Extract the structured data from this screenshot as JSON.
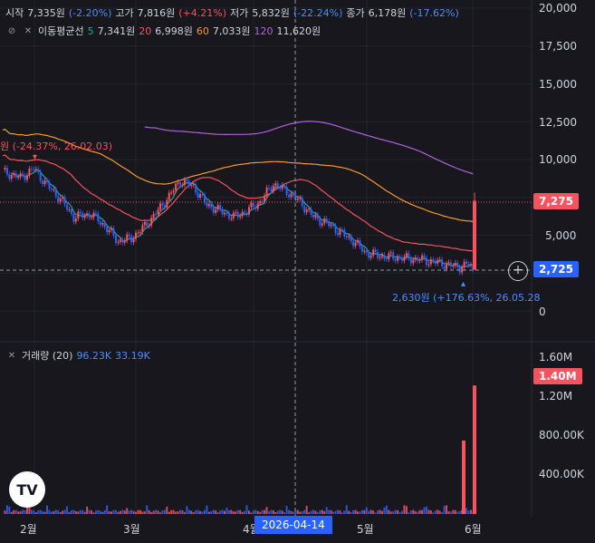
{
  "ohlc": {
    "open_label": "시작",
    "open_value": "7,335원",
    "open_change": "(-2.20%)",
    "high_label": "고가",
    "high_value": "7,816원",
    "high_change": "(+4.21%)",
    "low_label": "저가",
    "low_value": "5,832원",
    "low_change": "(-22.24%)",
    "close_label": "종가",
    "close_value": "6,178원",
    "close_change": "(-17.62%)"
  },
  "ma_legend": {
    "title": "이동평균선",
    "items": [
      {
        "period": "5",
        "value": "7,341원",
        "color": "#26a69a"
      },
      {
        "period": "20",
        "value": "6,998원",
        "color": "#f7525f"
      },
      {
        "period": "60",
        "value": "7,033원",
        "color": "#f79a2a"
      },
      {
        "period": "120",
        "value": "11,620원",
        "color": "#b062e0"
      }
    ]
  },
  "price_axis": [
    "20,000",
    "17,500",
    "15,000",
    "12,500",
    "10,000",
    "5,000",
    "0"
  ],
  "price_badges": {
    "last": "7,275",
    "crosshair": "2,725"
  },
  "annotations": {
    "high_note": "원 (-24.37%, 26.02.03)",
    "low_note": "2,630원 (+176.63%, 26.05.28"
  },
  "volume": {
    "title": "거래량 (20)",
    "value1": "96.23K",
    "value2": "33.19K",
    "axis": [
      "1.60M",
      "1.20M",
      "800.00K",
      "400.00K"
    ],
    "badge": "1.40M"
  },
  "time_axis": [
    "2월",
    "3월",
    "4월",
    "5월",
    "6월"
  ],
  "crosshair_date": "2026-04-14",
  "logo_text": "TV",
  "colors": {
    "up": "#f7525f",
    "down": "#2962ff",
    "ma5": "#26a69a",
    "ma20": "#f7525f",
    "ma60": "#f79a2a",
    "ma120": "#b062e0"
  }
}
